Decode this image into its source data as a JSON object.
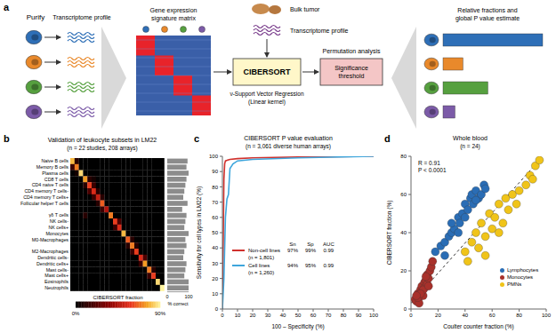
{
  "panel_a": {
    "label": "a",
    "purify": "Purify",
    "profile_label": "Transcriptome profile",
    "matrix_label": "Gene expression signature matrix",
    "tumor_label": "Bulk tumor",
    "tumor_profile_label": "Transcriptome profile",
    "method": "CIBERSORT",
    "method_note": [
      "ν-Support Vector Regression",
      "(Linear kernel)"
    ],
    "permutation_label": "Permutation analysis",
    "threshold_label": "Significance threshold",
    "output_label": "Relative fractions and global P value estimate",
    "cell_colors": [
      "#2e6fb7",
      "#e9892b",
      "#56a03f",
      "#7c5ba8"
    ],
    "output": {
      "xlim": [
        0,
        100
      ],
      "values": [
        100,
        20,
        45,
        12
      ]
    }
  },
  "panel_b": {
    "label": "b",
    "title": "Validation of leukocyte subsets in LM22",
    "subtitle": "(n = 22 studies, 208 arrays)",
    "rows": [
      "Naive B cells",
      "Memory B cells",
      "Plasma cells",
      "CD8 T cells",
      "CD4 naive T cells",
      "CD4 memory T cells-",
      "CD4 memory T cells+",
      "Follicular helper T cells",
      null,
      "γδ T cells",
      "NK cells-",
      "NK cells+",
      "Monocytes",
      "M0-Macrophages",
      null,
      "M2-Macrophages",
      "Dendritic cells-",
      "Dendritic cells+",
      "Mast cells-",
      "Mast cells+",
      "Eosinophils",
      "Neutrophils"
    ],
    "cells": [
      [
        80,
        10,
        0,
        0,
        0,
        0,
        0,
        0,
        0,
        0,
        0,
        0,
        0,
        0,
        0,
        0,
        0,
        0,
        0,
        0,
        0,
        0
      ],
      [
        15,
        70,
        0,
        0,
        0,
        0,
        0,
        0,
        0,
        0,
        0,
        0,
        0,
        0,
        0,
        0,
        0,
        0,
        0,
        0,
        0,
        0
      ],
      [
        0,
        5,
        85,
        0,
        0,
        0,
        0,
        0,
        0,
        0,
        0,
        0,
        0,
        0,
        0,
        0,
        0,
        0,
        0,
        0,
        0,
        0
      ],
      [
        0,
        0,
        0,
        75,
        10,
        5,
        0,
        0,
        0,
        0,
        0,
        0,
        0,
        0,
        0,
        0,
        0,
        0,
        0,
        0,
        0,
        0
      ],
      [
        0,
        0,
        0,
        10,
        60,
        15,
        0,
        0,
        0,
        0,
        0,
        0,
        0,
        0,
        0,
        0,
        0,
        0,
        0,
        0,
        0,
        0
      ],
      [
        0,
        0,
        0,
        0,
        20,
        55,
        10,
        0,
        0,
        0,
        0,
        0,
        0,
        0,
        0,
        0,
        0,
        0,
        0,
        0,
        0,
        0
      ],
      [
        0,
        0,
        0,
        0,
        0,
        15,
        50,
        10,
        0,
        0,
        0,
        0,
        0,
        0,
        0,
        0,
        0,
        0,
        0,
        0,
        0,
        0
      ],
      [
        0,
        0,
        0,
        0,
        0,
        0,
        10,
        65,
        0,
        0,
        0,
        0,
        0,
        0,
        0,
        0,
        0,
        0,
        0,
        0,
        0,
        0
      ],
      [
        0,
        0,
        0,
        0,
        0,
        0,
        0,
        15,
        45,
        0,
        0,
        0,
        0,
        0,
        0,
        0,
        0,
        0,
        0,
        0,
        0,
        0
      ],
      [
        0,
        0,
        0,
        10,
        0,
        0,
        0,
        0,
        0,
        70,
        0,
        0,
        0,
        0,
        0,
        0,
        0,
        0,
        0,
        0,
        0,
        0
      ],
      [
        0,
        0,
        0,
        0,
        0,
        0,
        0,
        0,
        0,
        0,
        60,
        20,
        0,
        0,
        0,
        0,
        0,
        0,
        0,
        0,
        0,
        0
      ],
      [
        0,
        0,
        0,
        0,
        0,
        0,
        0,
        0,
        0,
        0,
        15,
        55,
        0,
        0,
        0,
        0,
        0,
        0,
        0,
        0,
        0,
        0
      ],
      [
        0,
        0,
        0,
        0,
        0,
        0,
        0,
        0,
        0,
        0,
        0,
        0,
        80,
        0,
        0,
        0,
        0,
        0,
        0,
        0,
        0,
        0
      ],
      [
        0,
        0,
        0,
        0,
        0,
        0,
        0,
        0,
        0,
        0,
        0,
        0,
        0,
        65,
        10,
        0,
        0,
        0,
        0,
        0,
        0,
        0
      ],
      [
        0,
        0,
        0,
        0,
        0,
        0,
        0,
        0,
        0,
        0,
        0,
        0,
        0,
        10,
        70,
        10,
        0,
        0,
        0,
        0,
        0,
        0
      ],
      [
        0,
        0,
        0,
        0,
        0,
        0,
        0,
        0,
        0,
        0,
        0,
        0,
        0,
        0,
        15,
        60,
        0,
        0,
        0,
        0,
        0,
        0
      ],
      [
        0,
        0,
        0,
        0,
        0,
        0,
        0,
        0,
        0,
        0,
        0,
        0,
        0,
        0,
        0,
        0,
        55,
        20,
        0,
        0,
        0,
        0
      ],
      [
        0,
        0,
        0,
        0,
        0,
        0,
        0,
        0,
        0,
        0,
        0,
        0,
        0,
        0,
        0,
        0,
        15,
        75,
        0,
        0,
        0,
        0
      ],
      [
        0,
        0,
        0,
        0,
        0,
        0,
        0,
        0,
        0,
        0,
        0,
        0,
        0,
        0,
        0,
        0,
        0,
        0,
        70,
        10,
        0,
        0
      ],
      [
        0,
        0,
        0,
        0,
        0,
        0,
        0,
        0,
        0,
        0,
        0,
        0,
        0,
        0,
        0,
        0,
        0,
        0,
        15,
        60,
        0,
        0
      ],
      [
        0,
        0,
        0,
        0,
        0,
        0,
        0,
        0,
        0,
        0,
        0,
        0,
        0,
        0,
        0,
        0,
        0,
        0,
        0,
        0,
        85,
        0
      ],
      [
        0,
        0,
        0,
        0,
        0,
        0,
        0,
        0,
        0,
        0,
        0,
        0,
        0,
        0,
        0,
        0,
        0,
        0,
        0,
        0,
        0,
        90
      ]
    ],
    "colorbar": {
      "label": "CIBERSORT fraction",
      "range": [
        0,
        90
      ],
      "ticks": [
        {
          "value": 0,
          "label": "0%"
        },
        {
          "value": 90,
          "label": "90%"
        }
      ]
    },
    "percent_correct": {
      "label": "% correct",
      "xlim": [
        0,
        100
      ],
      "xticks": [
        0,
        100
      ],
      "values": [
        95,
        90,
        100,
        90,
        85,
        80,
        75,
        95,
        70,
        90,
        85,
        80,
        100,
        85,
        90,
        80,
        75,
        90,
        85,
        80,
        100,
        100
      ]
    }
  },
  "chart_data": [
    {
      "panel": "c",
      "type": "line",
      "title": "CIBERSORT P value evaluation",
      "subtitle": "(n = 3,061 diverse human arrays)",
      "x_label": "100 – Specificity (%)",
      "y_label": "Sensitivity for cell types in LM22 (%)",
      "xlim": [
        0,
        100
      ],
      "xticks": [
        0,
        10,
        20,
        30,
        40,
        50,
        60,
        70,
        80,
        90,
        100
      ],
      "ylim": [
        0,
        100
      ],
      "yticks": [
        0,
        10,
        20,
        30,
        40,
        50,
        60,
        70,
        80,
        90,
        100
      ],
      "grid": false,
      "series": [
        {
          "name": "Non-cell lines",
          "sample_size": "(n = 1,801)",
          "color": "#d0312d",
          "x": [
            0,
            0.5,
            1,
            1.5,
            2,
            5,
            10,
            20,
            50,
            100
          ],
          "values": [
            0,
            40,
            85,
            95,
            97,
            98,
            98.5,
            99,
            99.5,
            100
          ]
        },
        {
          "name": "Cell lines",
          "sample_size": "(n = 1,260)",
          "color": "#3ea6dc",
          "x": [
            0,
            1,
            2,
            3,
            4,
            5,
            7,
            10,
            20,
            50,
            100
          ],
          "values": [
            0,
            20,
            60,
            72,
            75,
            92,
            95,
            97,
            98,
            99,
            100
          ]
        }
      ],
      "table": {
        "header": [
          "Sn",
          "Sp",
          "AUC"
        ],
        "rows": [
          [
            "97%",
            "99%",
            "0.99"
          ],
          [
            "94%",
            "95%",
            "0.99"
          ]
        ]
      }
    },
    {
      "panel": "d",
      "type": "scatter",
      "title": "Whole blood",
      "subtitle": "(n = 24)",
      "x_label": "Coulter counter fraction (%)",
      "y_label": "CIBERSORT fraction (%)",
      "xlim": [
        0,
        100
      ],
      "xticks": [
        0,
        20,
        40,
        60,
        80,
        100
      ],
      "ylim": [
        0,
        80
      ],
      "yticks": [
        0,
        20,
        40,
        60,
        80
      ],
      "grid": false,
      "legend": "lower right",
      "annotations": [
        "R = 0.91",
        "P < 0.0001"
      ],
      "fit_line": {
        "x": [
          0,
          95
        ],
        "y": [
          3,
          78
        ],
        "line_style": "dashed"
      },
      "series": [
        {
          "name": "Lymphocytes",
          "color": "#2a6db5",
          "x": [
            18,
            22,
            25,
            28,
            30,
            32,
            35,
            36,
            38,
            40,
            42,
            44,
            45,
            46,
            48,
            50,
            52,
            54,
            55,
            40,
            30,
            25,
            35,
            48
          ],
          "values": [
            30,
            33,
            35,
            38,
            40,
            42,
            48,
            45,
            50,
            55,
            52,
            58,
            60,
            55,
            62,
            58,
            60,
            65,
            63,
            48,
            45,
            28,
            40,
            57
          ]
        },
        {
          "name": "Monocytes",
          "color": "#a8312b",
          "x": [
            3,
            4,
            5,
            6,
            7,
            8,
            8,
            9,
            10,
            10,
            11,
            12,
            12,
            13,
            14,
            15,
            6,
            9,
            11,
            5,
            7,
            13,
            16,
            4
          ],
          "values": [
            5,
            4,
            8,
            6,
            10,
            9,
            12,
            7,
            14,
            11,
            15,
            13,
            18,
            16,
            20,
            22,
            3,
            10,
            17,
            6,
            8,
            12,
            25,
            7
          ]
        },
        {
          "name": "PMNs",
          "color": "#f0c419",
          "x": [
            40,
            42,
            45,
            48,
            50,
            52,
            55,
            58,
            60,
            62,
            65,
            68,
            70,
            72,
            75,
            78,
            80,
            85,
            88,
            90,
            92,
            95,
            55,
            65
          ],
          "values": [
            30,
            25,
            35,
            40,
            32,
            45,
            38,
            50,
            42,
            48,
            55,
            45,
            58,
            52,
            60,
            55,
            62,
            65,
            70,
            68,
            75,
            78,
            28,
            40
          ]
        }
      ]
    }
  ]
}
